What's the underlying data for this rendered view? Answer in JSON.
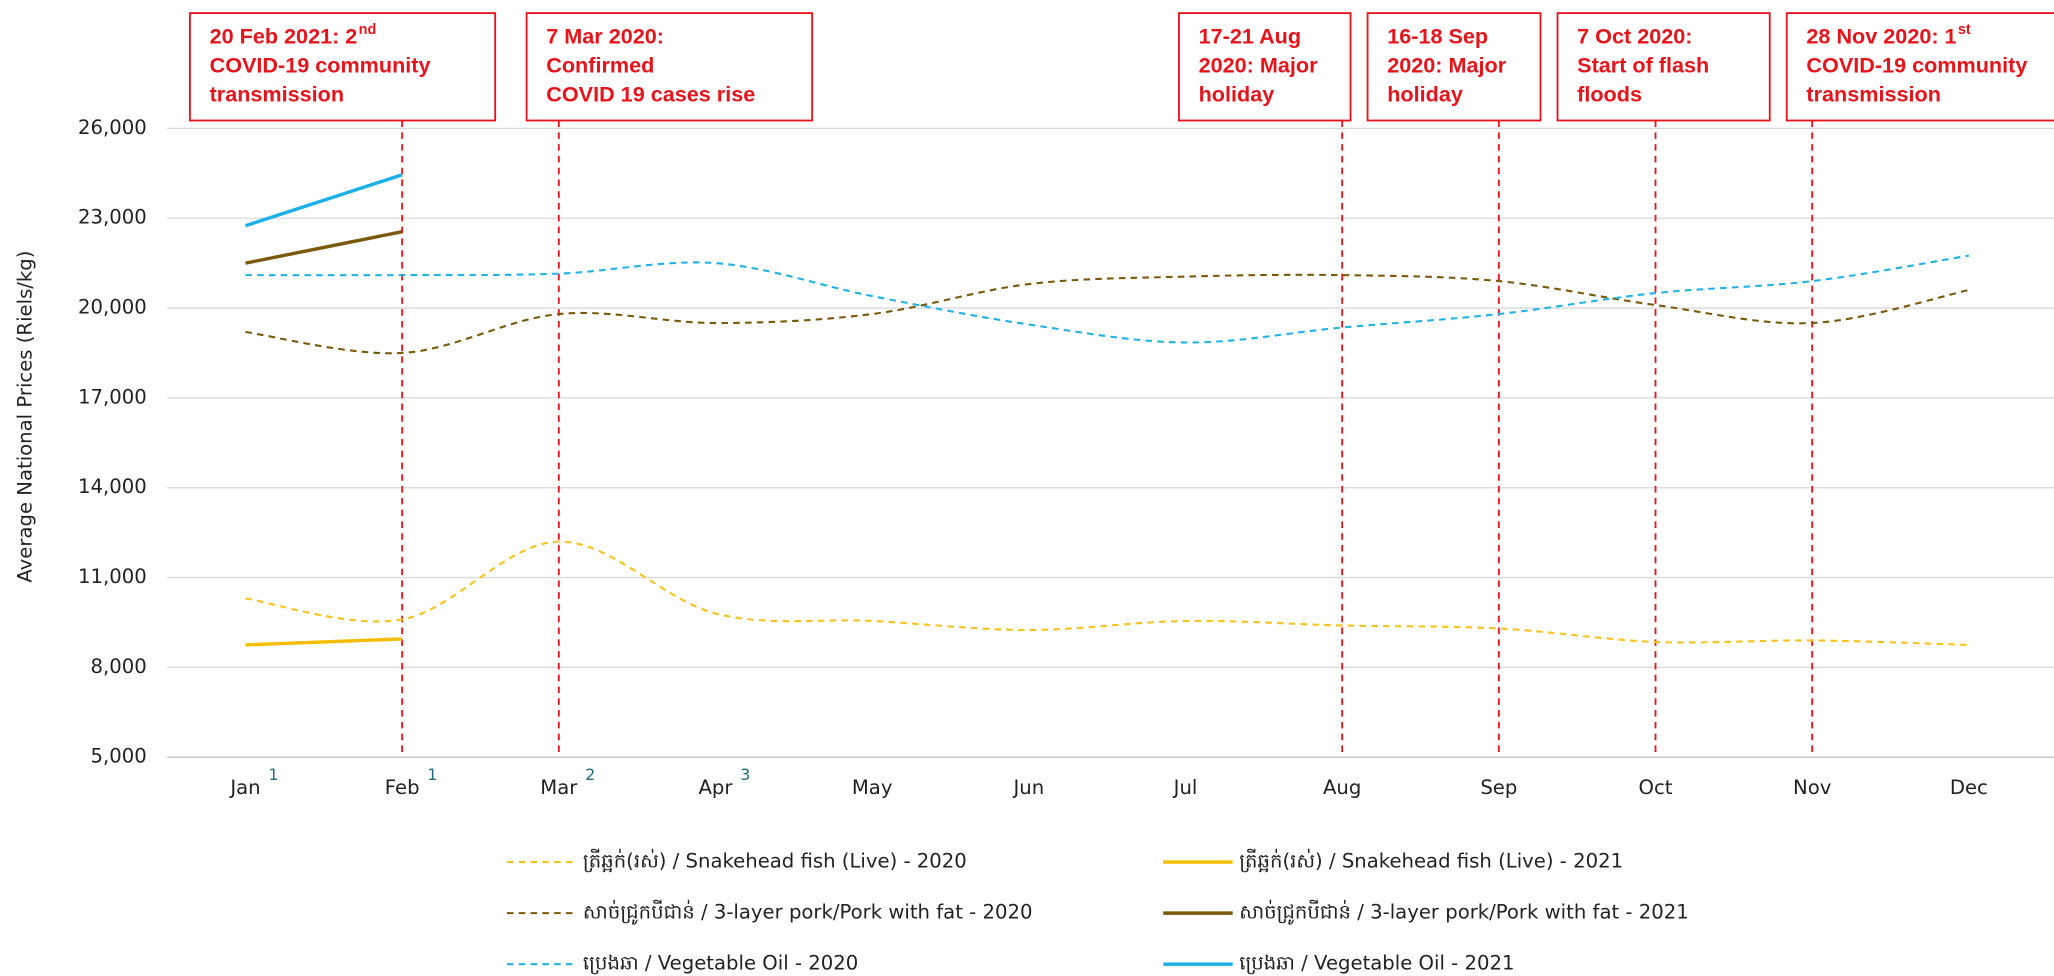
{
  "chart_data": {
    "type": "line",
    "y_label": "Average National Prices (Riels/kg)",
    "categories": [
      "Jan",
      "Feb",
      "Mar",
      "Apr",
      "May",
      "Jun",
      "Jul",
      "Aug",
      "Sep",
      "Oct",
      "Nov",
      "Dec"
    ],
    "category_notes": [
      "1",
      "1",
      "2",
      "3",
      null,
      null,
      null,
      null,
      null,
      null,
      null,
      null
    ],
    "ylim": [
      5000,
      26000
    ],
    "yticks": [
      {
        "value": 5000,
        "label": "5,000"
      },
      {
        "value": 8000,
        "label": "8,000"
      },
      {
        "value": 11000,
        "label": "11,000"
      },
      {
        "value": 14000,
        "label": "14,000"
      },
      {
        "value": 17000,
        "label": "17,000"
      },
      {
        "value": 20000,
        "label": "20,000"
      },
      {
        "value": 23000,
        "label": "23,000"
      },
      {
        "value": 26000,
        "label": "26,000"
      }
    ],
    "grid": true,
    "series": [
      {
        "name": "ត្រីឆ្អក់(រស់) / Snakehead fish (Live) - 2020",
        "color": "#f7c31c",
        "dashed": true,
        "values": [
          10300,
          9600,
          12200,
          9800,
          9550,
          9250,
          9550,
          9400,
          9300,
          8850,
          8900,
          8750
        ]
      },
      {
        "name": "ត្រីឆ្អក់(រស់) / Snakehead fish (Live) - 2021",
        "color": "#f5bd00",
        "dashed": false,
        "values": [
          8750,
          8950,
          null,
          null,
          null,
          null,
          null,
          null,
          null,
          null,
          null,
          null
        ]
      },
      {
        "name": "សាច់ជ្រូកបីជាន់ /  3-layer pork/Pork with fat - 2020",
        "color": "#7a5a0a",
        "dashed": true,
        "values": [
          19200,
          18500,
          19800,
          19500,
          19800,
          20800,
          21050,
          21100,
          20900,
          20100,
          19500,
          20600
        ]
      },
      {
        "name": "សាច់ជ្រូកបីជាន់ /  3-layer pork/Pork with fat - 2021",
        "color": "#7a5a0a",
        "dashed": false,
        "values": [
          21500,
          22550,
          null,
          null,
          null,
          null,
          null,
          null,
          null,
          null,
          null,
          null
        ]
      },
      {
        "name": "ប្រេងឆា / Vegetable Oil - 2020",
        "color": "#22b3e6",
        "dashed": true,
        "values": [
          21100,
          21100,
          21150,
          21500,
          20400,
          19450,
          18850,
          19350,
          19800,
          20500,
          20900,
          21750
        ]
      },
      {
        "name": "ប្រេងឆា / Vegetable Oil - 2021",
        "color": "#1cb0e8",
        "dashed": false,
        "values": [
          22750,
          24450,
          null,
          null,
          null,
          null,
          null,
          null,
          null,
          null,
          null,
          null
        ]
      }
    ],
    "annotations": [
      {
        "category": "Feb",
        "lines": [
          "20 Feb 2021: 2",
          "COVID-19 community",
          "transmission"
        ],
        "sup": "nd"
      },
      {
        "category": "Mar",
        "lines": [
          "7 Mar 2020:",
          "Confirmed",
          "COVID 19 cases rise"
        ]
      },
      {
        "category": "Aug",
        "lines": [
          "17-21 Aug",
          "2020: Major",
          "holiday"
        ]
      },
      {
        "category": "Sep",
        "lines": [
          "16-18 Sep",
          "2020: Major",
          "holiday"
        ]
      },
      {
        "category": "Oct",
        "lines": [
          "7 Oct 2020:",
          "Start of flash",
          "floods"
        ]
      },
      {
        "category": "Nov",
        "lines": [
          "28 Nov 2020: 1",
          "COVID-19 community",
          "transmission"
        ],
        "sup": "st"
      }
    ]
  }
}
